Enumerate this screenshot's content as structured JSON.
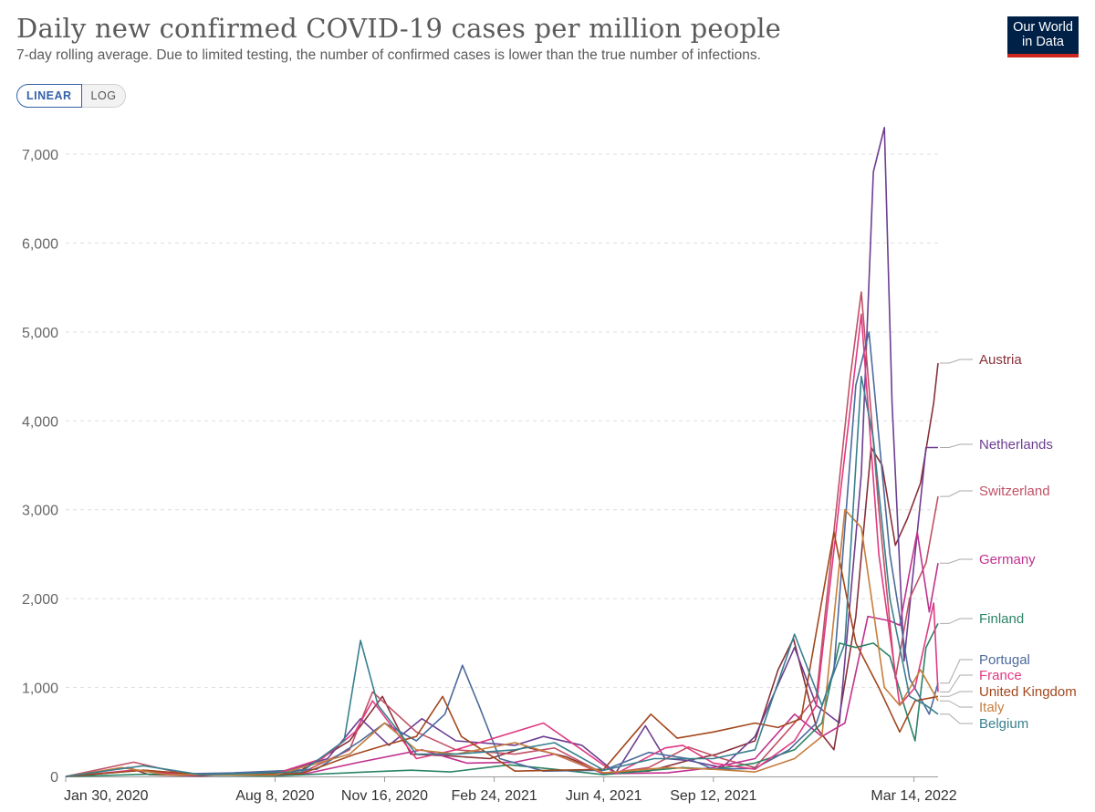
{
  "header": {
    "title": "Daily new confirmed COVID-19 cases per million people",
    "subtitle": "7-day rolling average. Due to limited testing, the number of confirmed cases is lower than the true number of infections.",
    "logo_line1": "Our World",
    "logo_line2": "in Data"
  },
  "controls": {
    "linear_label": "LINEAR",
    "log_label": "LOG",
    "selected": "LINEAR"
  },
  "colors": {
    "Austria": "#883039",
    "Netherlands": "#6d3e91",
    "Switzerland": "#c15065",
    "Germany": "#c0328e",
    "Finland": "#2c8465",
    "Portugal": "#4c6a9c",
    "France": "#e03a81",
    "United Kingdom": "#a2471d",
    "Italy": "#c67d3c",
    "Belgium": "#38808e"
  },
  "chart_data": {
    "type": "line",
    "x_type": "date",
    "xlim": [
      "2020-01-30",
      "2022-04-09"
    ],
    "ylim": [
      0,
      7300
    ],
    "yticks": [
      0,
      1000,
      2000,
      3000,
      4000,
      5000,
      6000,
      7000
    ],
    "ytick_labels": [
      "0",
      "1,000",
      "2,000",
      "3,000",
      "4,000",
      "5,000",
      "6,000",
      "7,000"
    ],
    "xticks": [
      "2020-01-30",
      "2020-08-08",
      "2020-11-16",
      "2021-02-24",
      "2021-06-04",
      "2021-09-12",
      "2022-03-14"
    ],
    "xtick_labels": [
      "Jan 30, 2020",
      "Aug 8, 2020",
      "Nov 16, 2020",
      "Feb 24, 2021",
      "Jun 4, 2021",
      "Sep 12, 2021",
      "Mar 14, 2022"
    ],
    "grid": true,
    "legend": "right",
    "series": [
      {
        "name": "Austria",
        "x": [
          "2020-01-30",
          "2020-03-27",
          "2020-04-15",
          "2020-06-01",
          "2020-09-01",
          "2020-10-15",
          "2020-11-14",
          "2020-12-10",
          "2021-01-15",
          "2021-02-20",
          "2021-03-25",
          "2021-05-01",
          "2021-06-04",
          "2021-07-15",
          "2021-08-20",
          "2021-09-15",
          "2021-10-20",
          "2021-11-10",
          "2021-11-24",
          "2021-12-15",
          "2021-12-31",
          "2022-01-20",
          "2022-02-03",
          "2022-02-13",
          "2022-02-25",
          "2022-03-08",
          "2022-03-20",
          "2022-04-01",
          "2022-04-05"
        ],
        "values": [
          0,
          100,
          20,
          5,
          70,
          400,
          900,
          250,
          230,
          200,
          330,
          220,
          40,
          60,
          180,
          250,
          400,
          1200,
          1550,
          550,
          300,
          1800,
          3700,
          3500,
          2600,
          2900,
          3300,
          4200,
          4650
        ]
      },
      {
        "name": "Netherlands",
        "x": [
          "2020-01-30",
          "2020-04-05",
          "2020-05-15",
          "2020-08-08",
          "2020-09-25",
          "2020-10-25",
          "2020-11-20",
          "2020-12-20",
          "2021-01-20",
          "2021-03-15",
          "2021-04-10",
          "2021-05-15",
          "2021-06-15",
          "2021-07-12",
          "2021-07-30",
          "2021-08-20",
          "2021-09-20",
          "2021-10-20",
          "2021-11-25",
          "2021-12-15",
          "2022-01-05",
          "2022-01-25",
          "2022-02-05",
          "2022-02-15",
          "2022-02-22",
          "2022-03-05",
          "2022-03-25",
          "2022-04-05"
        ],
        "values": [
          0,
          70,
          20,
          30,
          200,
          650,
          350,
          650,
          400,
          350,
          450,
          350,
          40,
          570,
          200,
          180,
          100,
          450,
          1450,
          800,
          600,
          3400,
          6800,
          7300,
          4200,
          1300,
          3700,
          3700
        ]
      },
      {
        "name": "Switzerland",
        "x": [
          "2020-01-30",
          "2020-04-01",
          "2020-05-20",
          "2020-09-01",
          "2020-10-15",
          "2020-11-05",
          "2020-12-15",
          "2021-01-20",
          "2021-03-15",
          "2021-04-20",
          "2021-06-04",
          "2021-07-15",
          "2021-08-20",
          "2021-09-20",
          "2021-10-20",
          "2021-11-25",
          "2021-12-15",
          "2022-01-15",
          "2022-01-25",
          "2022-02-10",
          "2022-02-25",
          "2022-03-10",
          "2022-03-25",
          "2022-04-05"
        ],
        "values": [
          0,
          160,
          20,
          40,
          300,
          950,
          500,
          300,
          250,
          320,
          30,
          100,
          330,
          200,
          100,
          600,
          900,
          4500,
          5450,
          3000,
          1100,
          2000,
          2400,
          3150
        ]
      },
      {
        "name": "Germany",
        "x": [
          "2020-01-30",
          "2020-04-05",
          "2020-05-20",
          "2020-09-01",
          "2020-10-20",
          "2020-12-20",
          "2021-01-30",
          "2021-03-15",
          "2021-04-20",
          "2021-06-04",
          "2021-08-01",
          "2021-09-12",
          "2021-10-20",
          "2021-11-25",
          "2021-12-20",
          "2022-01-10",
          "2022-01-31",
          "2022-02-20",
          "2022-03-01",
          "2022-03-10",
          "2022-03-17",
          "2022-03-28",
          "2022-04-05"
        ],
        "values": [
          0,
          70,
          10,
          20,
          150,
          300,
          150,
          160,
          250,
          30,
          40,
          100,
          200,
          700,
          450,
          600,
          1800,
          1750,
          1700,
          2300,
          2750,
          1850,
          2400
        ]
      },
      {
        "name": "Finland",
        "x": [
          "2020-01-30",
          "2020-04-15",
          "2020-08-08",
          "2020-11-01",
          "2020-12-10",
          "2021-01-15",
          "2021-03-10",
          "2021-04-20",
          "2021-06-04",
          "2021-08-15",
          "2021-09-12",
          "2021-10-20",
          "2021-11-25",
          "2021-12-20",
          "2022-01-05",
          "2022-01-20",
          "2022-02-05",
          "2022-02-20",
          "2022-03-05",
          "2022-03-15",
          "2022-03-25",
          "2022-04-05"
        ],
        "values": [
          0,
          25,
          5,
          50,
          70,
          50,
          130,
          80,
          20,
          100,
          80,
          150,
          300,
          600,
          1500,
          1450,
          1500,
          1350,
          800,
          400,
          1450,
          1720
        ]
      },
      {
        "name": "Portugal",
        "x": [
          "2020-01-30",
          "2020-04-10",
          "2020-05-20",
          "2020-07-01",
          "2020-09-15",
          "2020-10-25",
          "2020-11-16",
          "2020-12-15",
          "2021-01-10",
          "2021-01-26",
          "2021-02-10",
          "2021-03-01",
          "2021-04-10",
          "2021-06-04",
          "2021-07-15",
          "2021-08-20",
          "2021-09-12",
          "2021-10-20",
          "2021-11-20",
          "2021-12-15",
          "2021-12-31",
          "2022-01-20",
          "2022-02-01",
          "2022-02-20",
          "2022-03-10",
          "2022-03-28",
          "2022-04-05"
        ],
        "values": [
          0,
          70,
          30,
          40,
          80,
          400,
          600,
          400,
          700,
          1250,
          800,
          200,
          60,
          70,
          270,
          200,
          80,
          90,
          300,
          600,
          1200,
          4400,
          5000,
          2500,
          1100,
          700,
          1050
        ]
      },
      {
        "name": "France",
        "x": [
          "2020-01-30",
          "2020-04-01",
          "2020-05-20",
          "2020-08-08",
          "2020-09-20",
          "2020-10-20",
          "2020-11-05",
          "2020-12-15",
          "2021-01-20",
          "2021-04-10",
          "2021-05-15",
          "2021-06-15",
          "2021-07-30",
          "2021-08-15",
          "2021-09-12",
          "2021-10-20",
          "2021-11-25",
          "2021-12-15",
          "2022-01-06",
          "2022-01-25",
          "2022-02-10",
          "2022-03-01",
          "2022-03-15",
          "2022-04-01",
          "2022-04-05"
        ],
        "values": [
          0,
          70,
          20,
          30,
          200,
          500,
          850,
          200,
          300,
          600,
          300,
          30,
          320,
          350,
          150,
          80,
          400,
          800,
          3200,
          5200,
          2500,
          800,
          1000,
          1950,
          950
        ]
      },
      {
        "name": "United Kingdom",
        "x": [
          "2020-01-30",
          "2020-04-10",
          "2020-06-01",
          "2020-09-01",
          "2020-10-20",
          "2020-11-16",
          "2020-12-15",
          "2021-01-08",
          "2021-01-25",
          "2021-03-15",
          "2021-06-04",
          "2021-07-17",
          "2021-08-10",
          "2021-09-12",
          "2021-10-20",
          "2021-11-10",
          "2021-12-01",
          "2021-12-31",
          "2022-01-20",
          "2022-02-10",
          "2022-03-01",
          "2022-03-15",
          "2022-04-05"
        ],
        "values": [
          0,
          70,
          20,
          30,
          250,
          350,
          450,
          900,
          450,
          60,
          80,
          700,
          430,
          500,
          600,
          550,
          650,
          2750,
          1500,
          1000,
          500,
          850,
          900
        ]
      },
      {
        "name": "Italy",
        "x": [
          "2020-01-30",
          "2020-03-21",
          "2020-05-01",
          "2020-08-08",
          "2020-10-15",
          "2020-11-16",
          "2020-12-15",
          "2021-01-20",
          "2021-03-15",
          "2021-04-20",
          "2021-06-04",
          "2021-08-01",
          "2021-09-12",
          "2021-10-20",
          "2021-11-25",
          "2021-12-20",
          "2022-01-10",
          "2022-01-25",
          "2022-02-15",
          "2022-03-01",
          "2022-03-20",
          "2022-04-05"
        ],
        "values": [
          0,
          100,
          20,
          15,
          250,
          600,
          300,
          250,
          380,
          250,
          40,
          100,
          80,
          50,
          200,
          450,
          3000,
          2800,
          1000,
          800,
          1200,
          850
        ]
      },
      {
        "name": "Belgium",
        "x": [
          "2020-01-30",
          "2020-04-10",
          "2020-06-01",
          "2020-09-01",
          "2020-10-10",
          "2020-10-25",
          "2020-11-10",
          "2020-12-15",
          "2021-01-20",
          "2021-03-15",
          "2021-04-20",
          "2021-06-04",
          "2021-07-20",
          "2021-09-12",
          "2021-10-20",
          "2021-11-25",
          "2021-12-20",
          "2022-01-10",
          "2022-01-25",
          "2022-02-05",
          "2022-02-20",
          "2022-03-10",
          "2022-03-25",
          "2022-04-05"
        ],
        "values": [
          0,
          120,
          20,
          50,
          400,
          1530,
          800,
          250,
          250,
          300,
          380,
          70,
          200,
          200,
          300,
          1600,
          800,
          1500,
          4500,
          3800,
          2000,
          900,
          800,
          700
        ]
      }
    ],
    "legend_labels": [
      {
        "name": "Austria",
        "y": 4650
      },
      {
        "name": "Netherlands",
        "y": 3700
      },
      {
        "name": "Switzerland",
        "y": 3150
      },
      {
        "name": "Germany",
        "y": 2400
      },
      {
        "name": "Finland",
        "y": 1720
      },
      {
        "name": "Portugal",
        "y": 1050
      },
      {
        "name": "France",
        "y": 950
      },
      {
        "name": "United Kingdom",
        "y": 900
      },
      {
        "name": "Italy",
        "y": 850
      },
      {
        "name": "Belgium",
        "y": 700
      }
    ]
  }
}
